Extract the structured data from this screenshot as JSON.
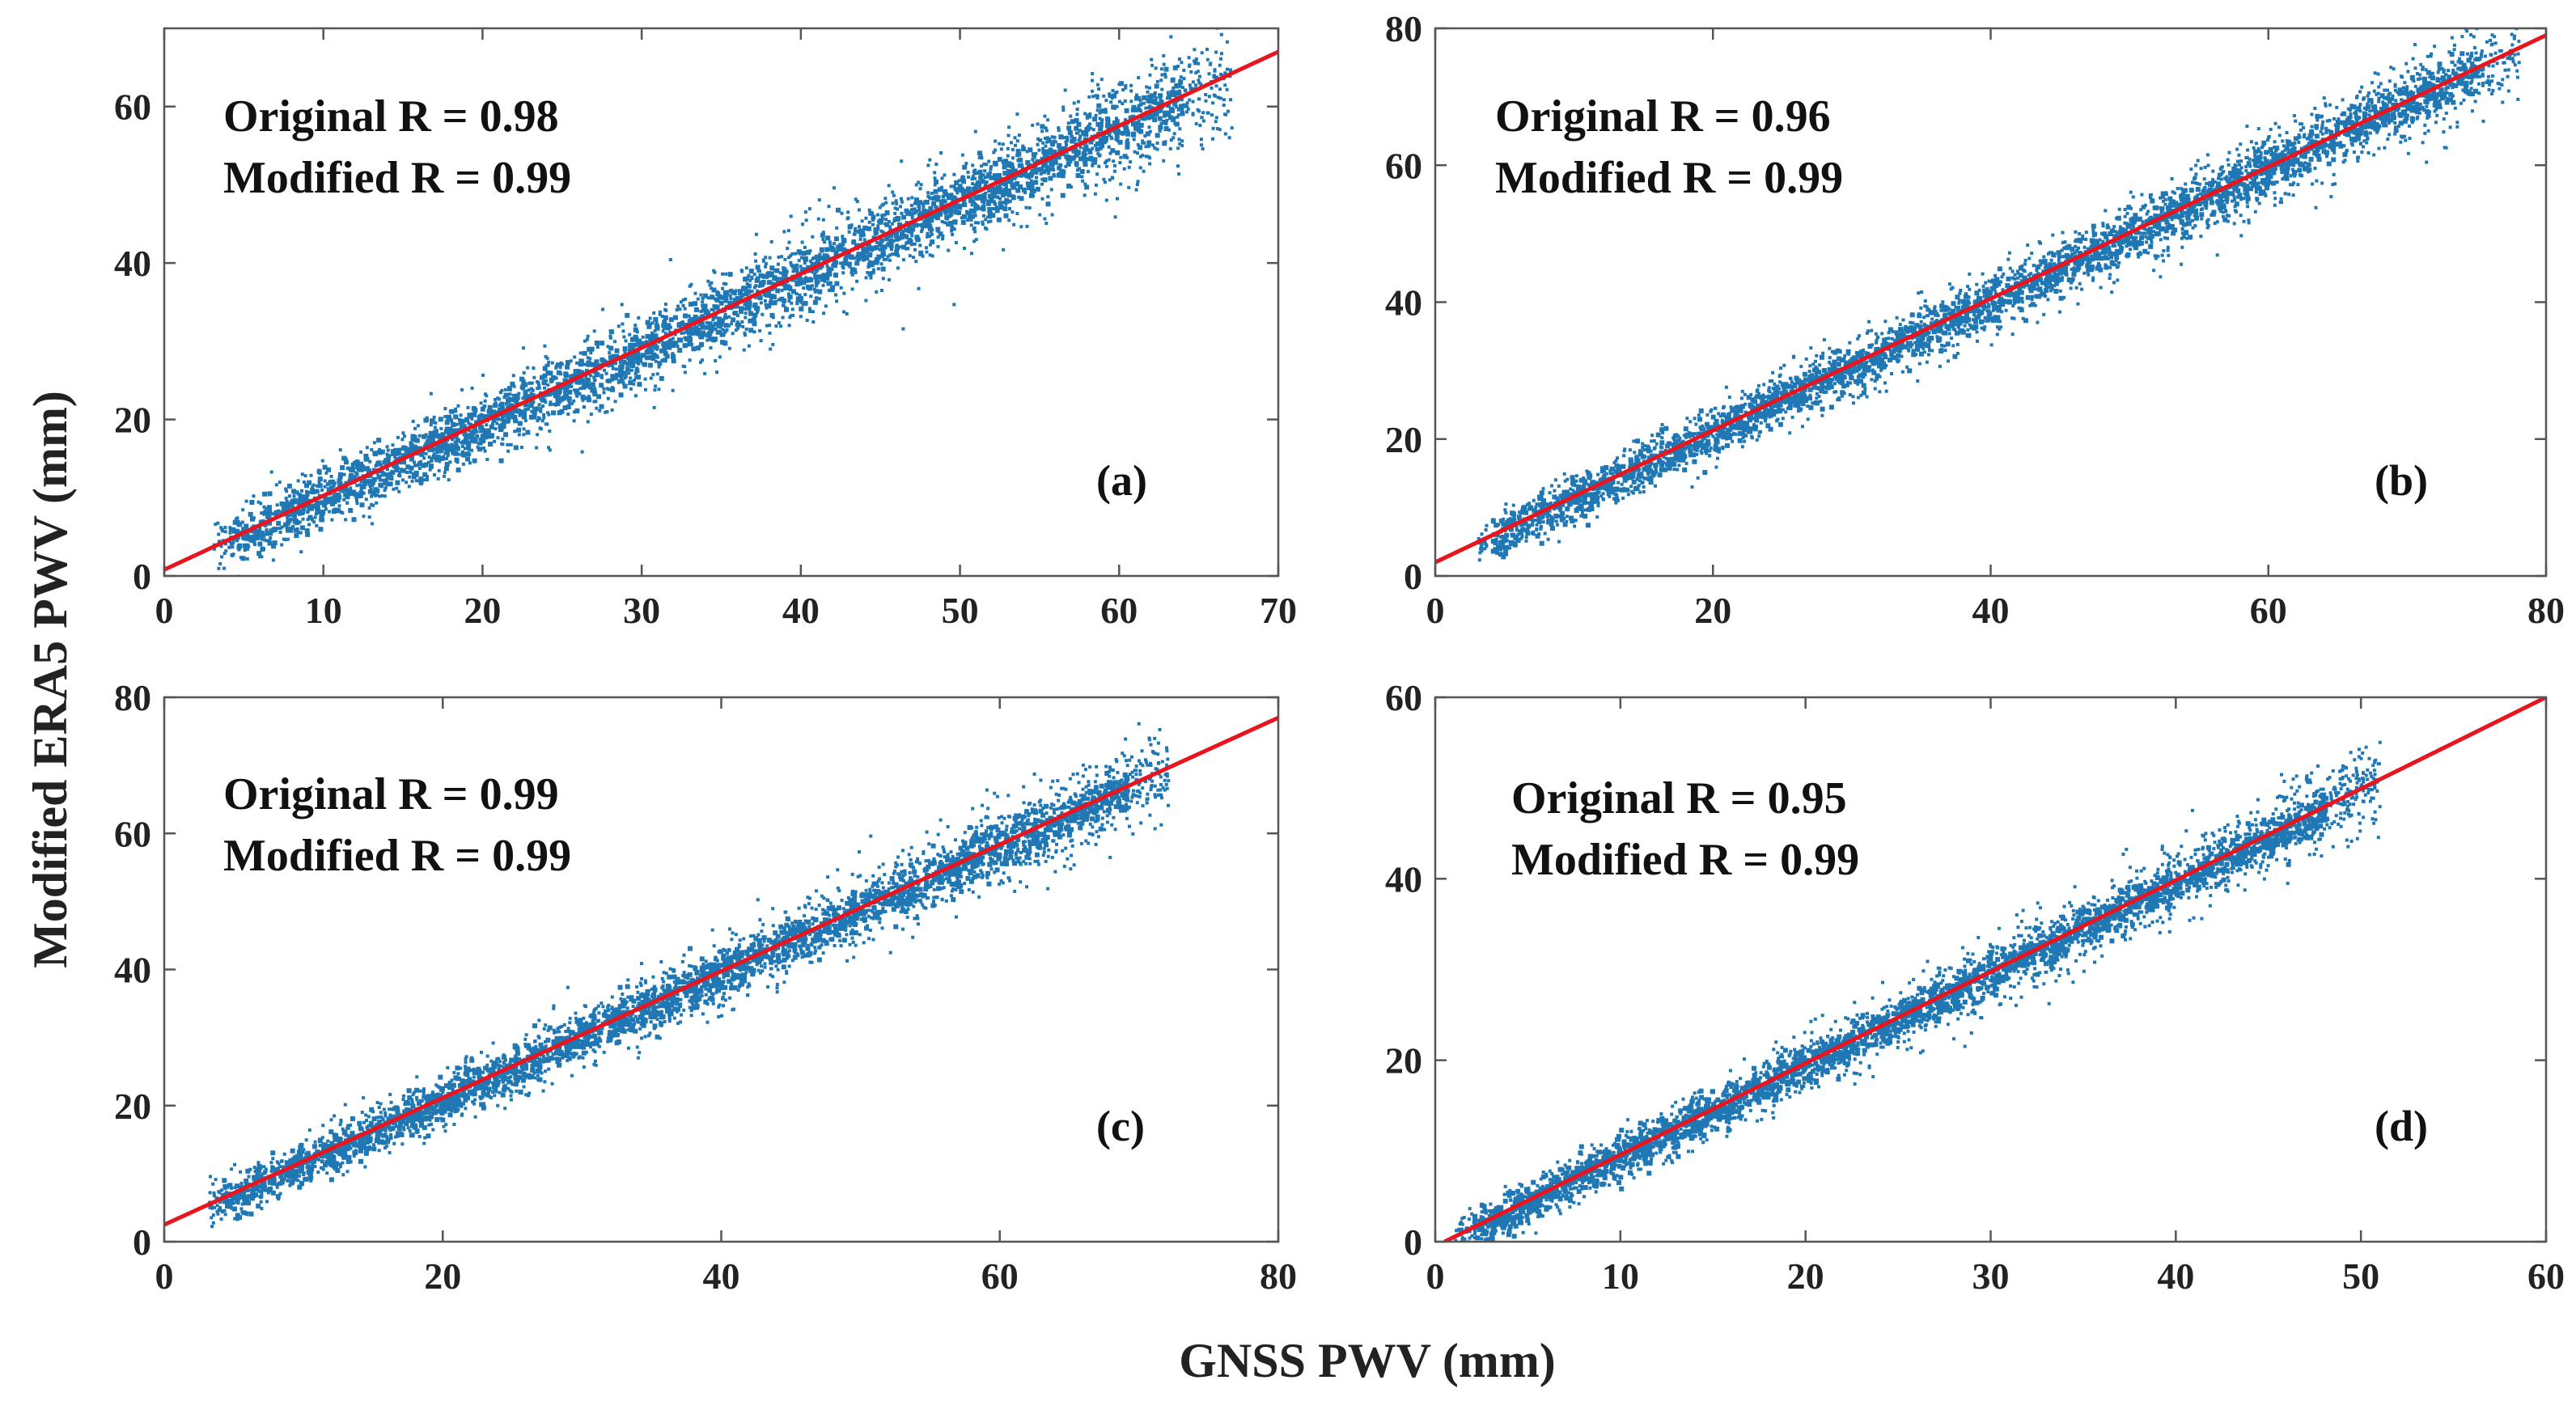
{
  "figure": {
    "ylabel": "Modified ERA5 PWV (mm)",
    "xlabel": "GNSS PWV (mm)",
    "scatter_color": "#1f77b4",
    "fit_color": "#e8141e"
  },
  "chart_data": [
    {
      "type": "scatter",
      "panel": "(a)",
      "xlim": [
        0,
        70
      ],
      "ylim": [
        0,
        70
      ],
      "xticks": [
        0,
        10,
        20,
        30,
        40,
        50,
        60,
        70
      ],
      "yticks": [
        0,
        20,
        40,
        60
      ],
      "annotation_line1": "Original R = 0.98",
      "annotation_line2": "Modified R = 0.99",
      "fit_line": [
        [
          0,
          0.8
        ],
        [
          70,
          67
        ]
      ],
      "scatter_extent": {
        "x_min": 3,
        "x_max": 67,
        "spread": 3.2
      }
    },
    {
      "type": "scatter",
      "panel": "(b)",
      "xlim": [
        0,
        80
      ],
      "ylim": [
        0,
        80
      ],
      "xticks": [
        0,
        20,
        40,
        60,
        80
      ],
      "yticks": [
        0,
        20,
        40,
        60,
        80
      ],
      "annotation_line1": "Original R = 0.96",
      "annotation_line2": "Modified R = 0.99",
      "fit_line": [
        [
          0,
          2
        ],
        [
          80,
          79
        ]
      ],
      "scatter_extent": {
        "x_min": 3,
        "x_max": 78,
        "spread": 2.8
      }
    },
    {
      "type": "scatter",
      "panel": "(c)",
      "xlim": [
        0,
        80
      ],
      "ylim": [
        0,
        80
      ],
      "xticks": [
        0,
        20,
        40,
        60,
        80
      ],
      "yticks": [
        0,
        20,
        40,
        60,
        80
      ],
      "annotation_line1": "Original R = 0.99",
      "annotation_line2": "Modified R = 0.99",
      "fit_line": [
        [
          0,
          2.5
        ],
        [
          80,
          77
        ]
      ],
      "scatter_extent": {
        "x_min": 3,
        "x_max": 72,
        "spread": 2.8
      }
    },
    {
      "type": "scatter",
      "panel": "(d)",
      "xlim": [
        0,
        60
      ],
      "ylim": [
        0,
        60
      ],
      "xticks": [
        0,
        10,
        20,
        30,
        40,
        50,
        60
      ],
      "yticks": [
        0,
        20,
        40,
        60
      ],
      "annotation_line1": "Original R = 0.95",
      "annotation_line2": "Modified R = 0.99",
      "fit_line": [
        [
          0.5,
          0
        ],
        [
          60,
          60
        ]
      ],
      "scatter_extent": {
        "x_min": 1,
        "x_max": 51,
        "spread": 2.0
      }
    }
  ]
}
